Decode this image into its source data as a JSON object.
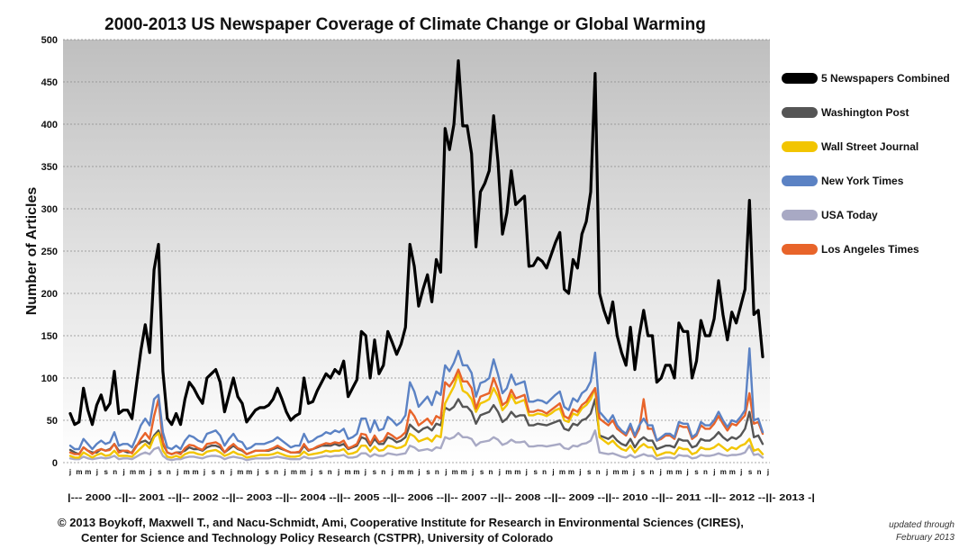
{
  "chart_data": {
    "type": "line",
    "title": "2000-2013 US Newspaper Coverage of Climate Change or Global Warming",
    "ylabel": "Number of Articles",
    "ylim": [
      0,
      500
    ],
    "yticks": [
      0,
      50,
      100,
      150,
      200,
      250,
      300,
      350,
      400,
      450,
      500
    ],
    "grid": "horizontal dashed",
    "legend_position": "right",
    "x_start": "2000-01",
    "x_end": "2013-02",
    "month_tick_labels": [
      "j",
      "m",
      "m",
      "j",
      "s",
      "n",
      "j",
      "m",
      "m",
      "j",
      "s",
      "n",
      "j",
      "m",
      "m",
      "j",
      "s",
      "n",
      "j",
      "m",
      "m",
      "j",
      "s",
      "n",
      "j",
      "m",
      "m",
      "j",
      "s",
      "n",
      "j",
      "m",
      "m",
      "j",
      "s",
      "n",
      "j",
      "m",
      "m",
      "j",
      "s",
      "n",
      "j",
      "m",
      "m",
      "j",
      "s",
      "n",
      "j",
      "m",
      "m",
      "j",
      "s",
      "n",
      "j",
      "m",
      "m",
      "j",
      "s",
      "n",
      "j",
      "m",
      "m",
      "j",
      "s",
      "n",
      "j",
      "m",
      "m",
      "j",
      "s",
      "n",
      "j",
      "m",
      "m",
      "j",
      "s",
      "n",
      "j"
    ],
    "year_band": "|--- 2000 --||-- 2001 --||-- 2002 --||-- 2003 --||-- 2004 --||-- 2005 --||-- 2006 --||-- 2007 --||-- 2008 --||-- 2009 --||-- 2010 --||-- 2011 --||-- 2012 --||- 2013 -|",
    "series": [
      {
        "name": "5 Newspapers Combined",
        "color": "#000000",
        "values": [
          58,
          45,
          48,
          88,
          62,
          45,
          68,
          80,
          62,
          70,
          108,
          58,
          62,
          62,
          52,
          92,
          132,
          163,
          130,
          228,
          258,
          108,
          52,
          45,
          58,
          45,
          75,
          95,
          88,
          78,
          70,
          100,
          105,
          110,
          95,
          60,
          80,
          100,
          78,
          70,
          48,
          55,
          62,
          65,
          65,
          68,
          75,
          88,
          75,
          60,
          50,
          55,
          58,
          100,
          70,
          72,
          85,
          95,
          105,
          100,
          110,
          105,
          120,
          78,
          88,
          98,
          155,
          150,
          100,
          145,
          105,
          115,
          155,
          142,
          128,
          140,
          160,
          258,
          232,
          185,
          205,
          222,
          190,
          240,
          225,
          395,
          370,
          400,
          475,
          398,
          398,
          365,
          255,
          320,
          330,
          345,
          410,
          355,
          270,
          295,
          345,
          305,
          310,
          315,
          232,
          233,
          242,
          238,
          230,
          245,
          260,
          272,
          205,
          200,
          240,
          230,
          270,
          285,
          320,
          460,
          200,
          180,
          165,
          190,
          150,
          130,
          115,
          160,
          110,
          150,
          180,
          150,
          150,
          95,
          100,
          115,
          115,
          100,
          165,
          155,
          155,
          100,
          120,
          168,
          150,
          150,
          170,
          215,
          175,
          145,
          178,
          165,
          185,
          205,
          310,
          175,
          180,
          125
        ]
      },
      {
        "name": "Washington Post",
        "color": "#555555",
        "values": [
          15,
          12,
          10,
          18,
          14,
          12,
          12,
          16,
          14,
          16,
          22,
          14,
          14,
          12,
          12,
          20,
          24,
          26,
          22,
          32,
          38,
          22,
          12,
          10,
          12,
          12,
          14,
          18,
          16,
          16,
          14,
          18,
          20,
          20,
          18,
          12,
          16,
          20,
          16,
          14,
          10,
          12,
          14,
          14,
          14,
          14,
          16,
          18,
          16,
          14,
          12,
          12,
          12,
          20,
          14,
          16,
          18,
          20,
          20,
          20,
          22,
          20,
          22,
          16,
          18,
          20,
          30,
          28,
          20,
          28,
          22,
          22,
          30,
          28,
          24,
          26,
          30,
          45,
          40,
          36,
          40,
          42,
          38,
          46,
          44,
          65,
          62,
          66,
          75,
          66,
          66,
          60,
          46,
          56,
          58,
          60,
          68,
          60,
          48,
          52,
          60,
          54,
          56,
          56,
          44,
          44,
          46,
          45,
          44,
          46,
          48,
          50,
          40,
          38,
          46,
          44,
          50,
          52,
          58,
          75,
          32,
          30,
          28,
          32,
          26,
          22,
          20,
          28,
          18,
          26,
          30,
          26,
          26,
          16,
          18,
          20,
          20,
          18,
          28,
          26,
          26,
          18,
          20,
          28,
          26,
          26,
          30,
          36,
          30,
          26,
          30,
          28,
          32,
          40,
          60,
          30,
          32,
          22
        ]
      },
      {
        "name": "Wall Street Journal",
        "color": "#f2c500",
        "values": [
          8,
          6,
          6,
          12,
          9,
          6,
          9,
          11,
          8,
          9,
          14,
          8,
          8,
          8,
          7,
          12,
          17,
          22,
          17,
          30,
          35,
          14,
          7,
          6,
          8,
          6,
          10,
          12,
          12,
          10,
          9,
          13,
          14,
          15,
          12,
          8,
          10,
          13,
          10,
          9,
          6,
          7,
          8,
          9,
          9,
          9,
          10,
          12,
          10,
          8,
          7,
          7,
          8,
          13,
          9,
          10,
          11,
          12,
          14,
          13,
          14,
          14,
          16,
          10,
          11,
          13,
          20,
          20,
          13,
          19,
          14,
          15,
          20,
          19,
          17,
          18,
          21,
          34,
          31,
          25,
          27,
          29,
          25,
          32,
          30,
          70,
          80,
          90,
          105,
          85,
          82,
          75,
          60,
          70,
          72,
          75,
          88,
          78,
          62,
          68,
          80,
          70,
          72,
          74,
          56,
          56,
          58,
          57,
          55,
          58,
          62,
          64,
          50,
          48,
          58,
          56,
          64,
          68,
          75,
          88,
          30,
          26,
          22,
          26,
          20,
          16,
          14,
          20,
          12,
          18,
          22,
          18,
          18,
          8,
          10,
          12,
          12,
          10,
          18,
          16,
          16,
          10,
          12,
          18,
          16,
          16,
          18,
          22,
          18,
          14,
          18,
          16,
          20,
          22,
          28,
          14,
          16,
          10
        ]
      },
      {
        "name": "New York Times",
        "color": "#5b82c4",
        "values": [
          20,
          16,
          16,
          28,
          22,
          16,
          22,
          26,
          22,
          24,
          36,
          20,
          22,
          22,
          18,
          30,
          44,
          52,
          44,
          75,
          80,
          36,
          18,
          16,
          20,
          16,
          26,
          32,
          30,
          26,
          24,
          34,
          36,
          38,
          32,
          20,
          28,
          34,
          26,
          24,
          16,
          18,
          22,
          22,
          22,
          24,
          26,
          30,
          26,
          22,
          18,
          20,
          20,
          34,
          24,
          26,
          30,
          32,
          36,
          34,
          38,
          36,
          40,
          28,
          30,
          34,
          52,
          52,
          36,
          50,
          38,
          40,
          54,
          50,
          44,
          48,
          56,
          95,
          84,
          66,
          72,
          78,
          68,
          84,
          80,
          115,
          108,
          118,
          132,
          115,
          115,
          106,
          78,
          94,
          96,
          100,
          122,
          104,
          82,
          88,
          104,
          92,
          94,
          96,
          72,
          72,
          74,
          73,
          70,
          75,
          80,
          84,
          66,
          62,
          76,
          72,
          82,
          86,
          96,
          130,
          60,
          54,
          48,
          56,
          44,
          38,
          34,
          46,
          32,
          44,
          52,
          44,
          44,
          26,
          30,
          34,
          34,
          30,
          48,
          46,
          46,
          30,
          34,
          48,
          44,
          44,
          50,
          60,
          50,
          42,
          50,
          48,
          54,
          62,
          135,
          50,
          52,
          36
        ]
      },
      {
        "name": "USA Today",
        "color": "#a8a9c4",
        "values": [
          5,
          4,
          4,
          7,
          5,
          4,
          5,
          6,
          5,
          6,
          8,
          4,
          5,
          5,
          4,
          7,
          10,
          12,
          10,
          16,
          18,
          8,
          4,
          3,
          4,
          4,
          6,
          7,
          7,
          6,
          5,
          7,
          8,
          8,
          7,
          4,
          6,
          7,
          6,
          5,
          3,
          4,
          5,
          5,
          5,
          5,
          6,
          7,
          6,
          5,
          4,
          4,
          4,
          7,
          5,
          5,
          6,
          7,
          8,
          7,
          8,
          8,
          9,
          6,
          6,
          7,
          11,
          11,
          7,
          10,
          8,
          8,
          11,
          10,
          9,
          10,
          11,
          20,
          18,
          14,
          15,
          16,
          14,
          18,
          17,
          30,
          28,
          30,
          35,
          30,
          30,
          28,
          20,
          24,
          25,
          26,
          30,
          27,
          21,
          23,
          27,
          24,
          24,
          25,
          19,
          19,
          20,
          20,
          19,
          20,
          21,
          22,
          17,
          16,
          20,
          19,
          22,
          23,
          26,
          38,
          12,
          11,
          10,
          11,
          9,
          7,
          6,
          9,
          6,
          8,
          10,
          8,
          8,
          4,
          5,
          6,
          6,
          5,
          9,
          8,
          8,
          5,
          6,
          9,
          8,
          8,
          9,
          11,
          9,
          8,
          9,
          9,
          10,
          12,
          20,
          9,
          10,
          6
        ]
      },
      {
        "name": "Los Angeles Times",
        "color": "#e8642a",
        "values": [
          12,
          10,
          10,
          18,
          14,
          10,
          14,
          16,
          14,
          15,
          22,
          12,
          14,
          14,
          11,
          19,
          28,
          35,
          28,
          55,
          75,
          24,
          12,
          10,
          12,
          10,
          17,
          21,
          20,
          17,
          15,
          22,
          23,
          24,
          21,
          12,
          18,
          22,
          17,
          15,
          10,
          12,
          14,
          14,
          14,
          15,
          17,
          20,
          17,
          14,
          12,
          12,
          13,
          22,
          15,
          16,
          19,
          21,
          23,
          22,
          24,
          23,
          26,
          17,
          19,
          22,
          34,
          33,
          22,
          32,
          24,
          26,
          35,
          32,
          28,
          31,
          36,
          62,
          55,
          44,
          48,
          52,
          45,
          55,
          52,
          95,
          90,
          98,
          110,
          96,
          96,
          88,
          64,
          78,
          80,
          82,
          100,
          86,
          68,
          72,
          86,
          76,
          78,
          80,
          60,
          60,
          62,
          61,
          58,
          62,
          66,
          70,
          55,
          52,
          63,
          60,
          68,
          72,
          80,
          88,
          52,
          48,
          44,
          50,
          40,
          36,
          32,
          42,
          30,
          40,
          75,
          40,
          40,
          26,
          28,
          32,
          32,
          28,
          44,
          42,
          42,
          28,
          32,
          44,
          40,
          40,
          46,
          55,
          46,
          38,
          46,
          44,
          50,
          56,
          82,
          46,
          48,
          34
        ]
      }
    ],
    "credit_line_1": "© 2013 Boykoff, Maxwell T., and Nacu-Schmidt, Ami, Cooperative Institute for Research in Environmental Sciences (CIRES),",
    "credit_line_2": "Center for Science and Technology Policy Research (CSTPR), University of Colorado",
    "updated_line_1": "updated through",
    "updated_line_2": "February 2013"
  }
}
